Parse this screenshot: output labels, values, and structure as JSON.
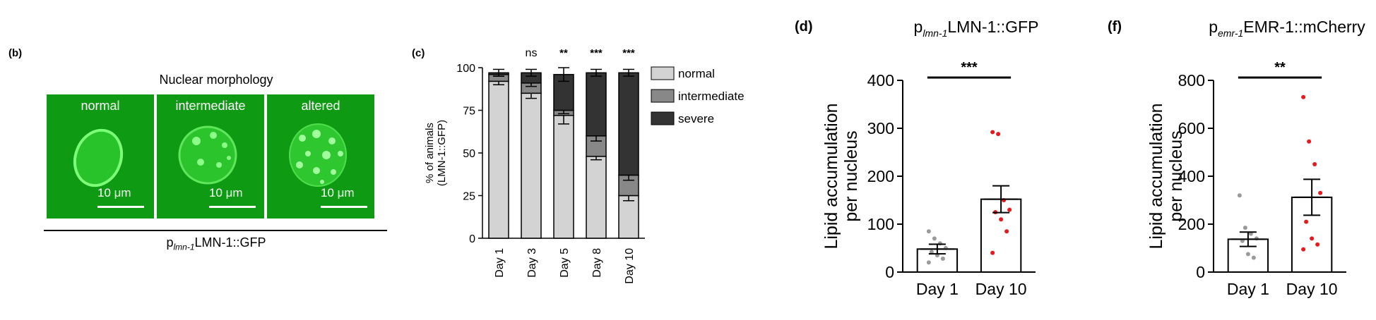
{
  "panel_b": {
    "letter": "(b)",
    "title": "Nuclear morphology",
    "images": [
      {
        "label": "normal",
        "scale": "10 μm",
        "pattern": "ring"
      },
      {
        "label": "intermediate",
        "scale": "10 μm",
        "pattern": "few-foci"
      },
      {
        "label": "altered",
        "scale": "10 μm",
        "pattern": "many-foci"
      }
    ],
    "caption_prefix": "p",
    "caption_sub": "lmn-1",
    "caption_suffix": "LMN-1::GFP"
  },
  "chart_data": [
    {
      "panel": "(c)",
      "type": "bar",
      "stacked": true,
      "title": "",
      "ylabel_line1": "% of animals",
      "ylabel_line2": "(LMN-1::GFP)",
      "categories": [
        "Day 1",
        "Day 3",
        "Day 5",
        "Day 8",
        "Day 10"
      ],
      "yticks": [
        0,
        25,
        50,
        75,
        100
      ],
      "ylim": [
        0,
        100
      ],
      "series": [
        {
          "name": "normal",
          "color": "#d3d3d3",
          "values": [
            92,
            85,
            72,
            48,
            25
          ],
          "err": [
            2,
            3,
            5,
            2,
            3
          ]
        },
        {
          "name": "intermediate",
          "color": "#888888",
          "values": [
            4,
            6,
            3,
            12,
            12
          ],
          "err": [
            1,
            2,
            2,
            3,
            3
          ]
        },
        {
          "name": "severe",
          "color": "#333333",
          "values": [
            1,
            6,
            21,
            37,
            60
          ],
          "err": [
            2,
            2,
            4,
            2,
            2
          ]
        }
      ],
      "significance": [
        "",
        "ns",
        "**",
        "***",
        "***"
      ],
      "legend": "right"
    },
    {
      "panel": "(d)",
      "type": "bar",
      "title_prefix": "p",
      "title_sub": "lmn-1",
      "title_suffix": "LMN-1::GFP",
      "ylabel_line1": "Lipid accumulation",
      "ylabel_line2": "per nucleus",
      "categories": [
        "Day 1",
        "Day 10"
      ],
      "values": [
        48,
        152
      ],
      "sem": [
        10,
        28
      ],
      "points": [
        [
          85,
          70,
          60,
          50,
          42,
          35,
          28,
          20
        ],
        [
          292,
          288,
          150,
          130,
          125,
          110,
          85,
          40
        ]
      ],
      "point_colors": [
        "#9a9a9a",
        "#e8191d"
      ],
      "yticks": [
        0,
        100,
        200,
        300,
        400
      ],
      "ylim": [
        0,
        400
      ],
      "significance": "***"
    },
    {
      "panel": "(f)",
      "type": "bar",
      "title_prefix": "p",
      "title_sub": "emr-1",
      "title_suffix": "EMR-1::mCherry",
      "ylabel_line1": "Lipid accumulation",
      "ylabel_line2": "per nucleus",
      "categories": [
        "Day 1",
        "Day 10"
      ],
      "values": [
        137,
        312
      ],
      "sem": [
        30,
        75
      ],
      "points": [
        [
          320,
          185,
          160,
          140,
          130,
          75,
          60
        ],
        [
          730,
          545,
          450,
          330,
          210,
          140,
          115,
          95
        ]
      ],
      "point_colors": [
        "#9a9a9a",
        "#e8191d"
      ],
      "yticks": [
        0,
        200,
        400,
        600,
        800
      ],
      "ylim": [
        0,
        800
      ],
      "significance": "**"
    }
  ]
}
